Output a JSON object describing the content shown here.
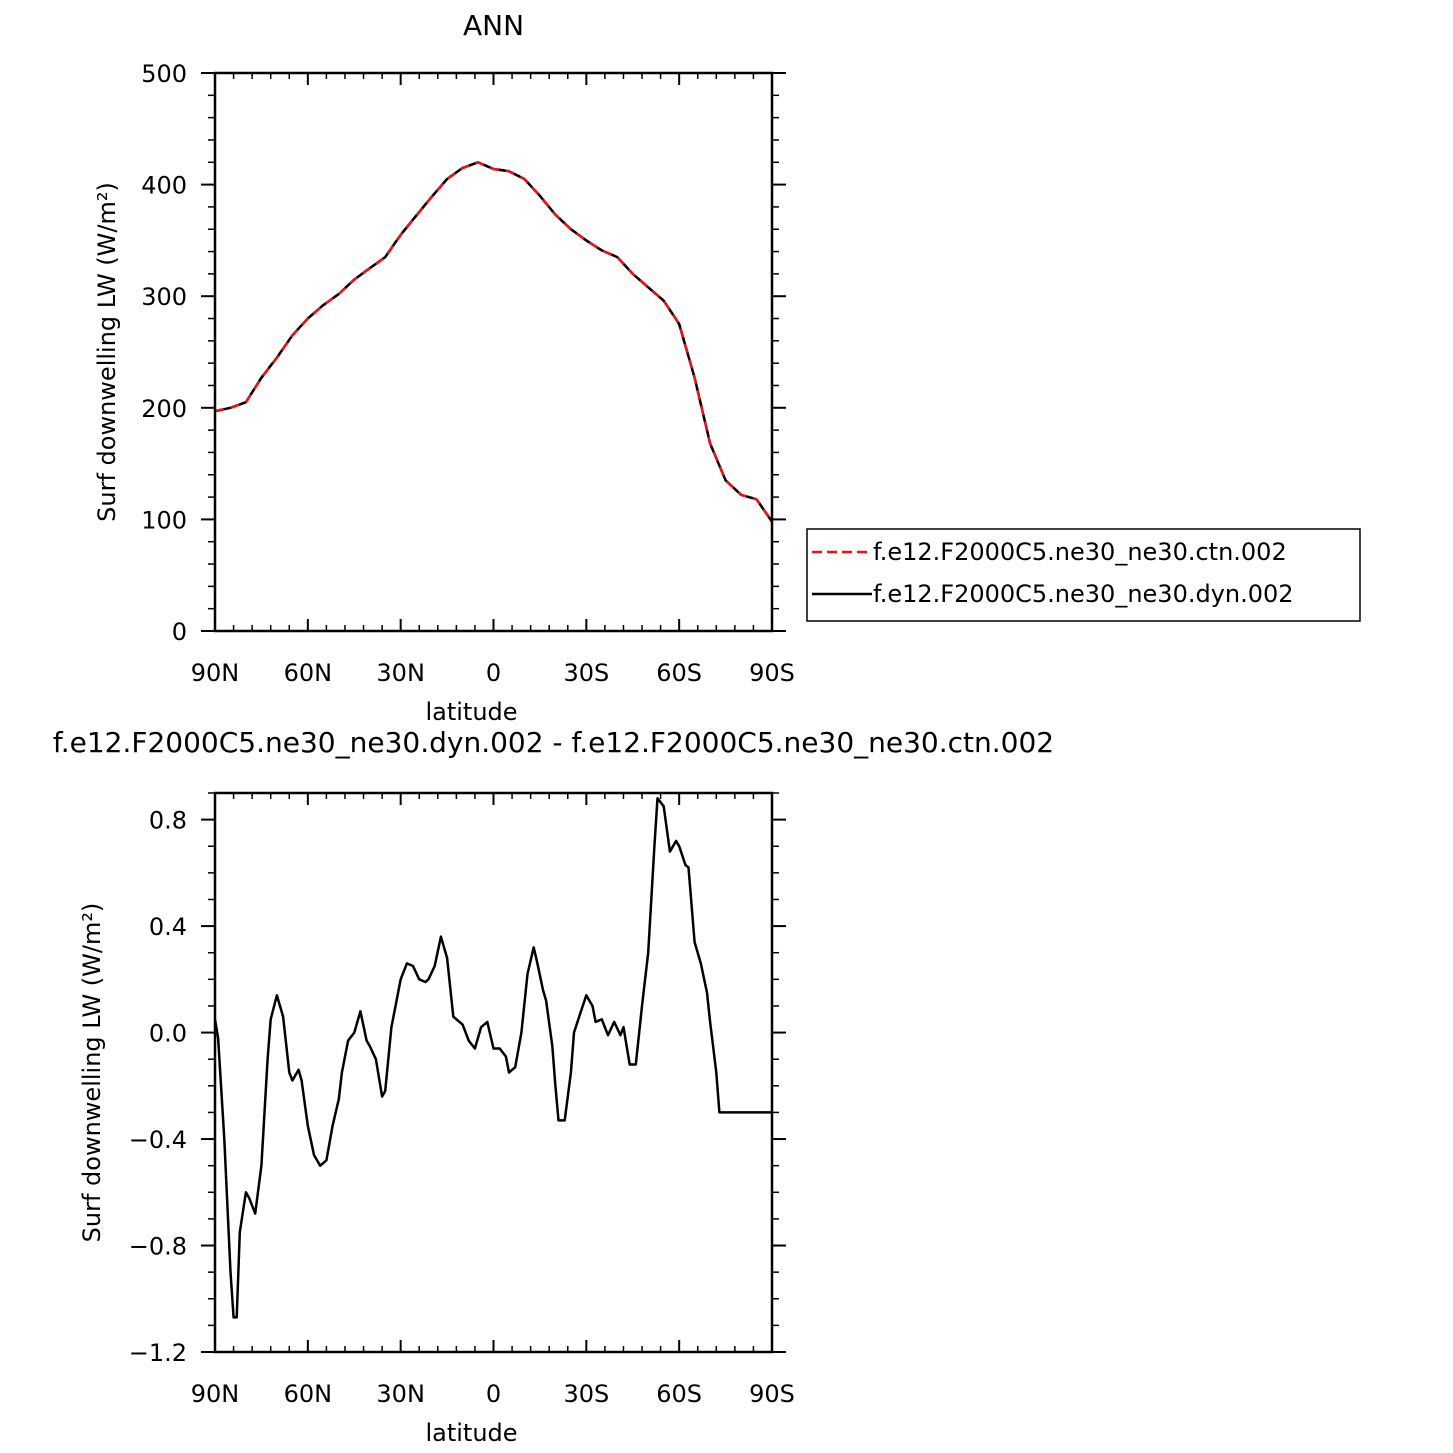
{
  "colors": {
    "ctn": "#e8141b",
    "dyn": "#000000"
  },
  "chart_data": [
    {
      "type": "line",
      "title": "ANN",
      "xlabel": "latitude",
      "ylabel": "Surf downwelling LW (W/m²)",
      "xlim": [
        90,
        -90
      ],
      "ylim": [
        0,
        500
      ],
      "x_ticks": [
        90,
        60,
        30,
        0,
        -30,
        -60,
        -90
      ],
      "x_tick_labels": [
        "90N",
        "60N",
        "30N",
        "0",
        "30S",
        "60S",
        "90S"
      ],
      "y_ticks": [
        0,
        100,
        200,
        300,
        400,
        500
      ],
      "y_tick_labels": [
        "0",
        "100",
        "200",
        "300",
        "400",
        "500"
      ],
      "legend": {
        "position": "right"
      },
      "series": [
        {
          "name": "f.e12.F2000C5.ne30_ne30.ctn.002",
          "color": "#e8141b",
          "style": "dashed",
          "x": [
            90,
            85,
            80,
            75,
            70,
            65,
            60,
            55,
            50,
            45,
            40,
            35,
            30,
            25,
            20,
            15,
            10,
            5,
            0,
            -5,
            -10,
            -15,
            -20,
            -25,
            -30,
            -35,
            -40,
            -45,
            -50,
            -55,
            -60,
            -65,
            -70,
            -75,
            -80,
            -85,
            -90
          ],
          "y": [
            197,
            200,
            205,
            227,
            245,
            265,
            280,
            292,
            302,
            315,
            325,
            335,
            355,
            372,
            389,
            405,
            415,
            420,
            414,
            412,
            405,
            390,
            373,
            360,
            350,
            341,
            335,
            320,
            308,
            296,
            275,
            227,
            168,
            135,
            122,
            118,
            98
          ]
        },
        {
          "name": "f.e12.F2000C5.ne30_ne30.dyn.002",
          "color": "#000000",
          "style": "solid",
          "x": [
            90,
            85,
            80,
            75,
            70,
            65,
            60,
            55,
            50,
            45,
            40,
            35,
            30,
            25,
            20,
            15,
            10,
            5,
            0,
            -5,
            -10,
            -15,
            -20,
            -25,
            -30,
            -35,
            -40,
            -45,
            -50,
            -55,
            -60,
            -65,
            -70,
            -75,
            -80,
            -85,
            -90
          ],
          "y": [
            197,
            200,
            205,
            227,
            245,
            265,
            280,
            292,
            302,
            315,
            325,
            335,
            355,
            372,
            389,
            405,
            415,
            420,
            414,
            412,
            405,
            390,
            373,
            360,
            350,
            341,
            335,
            320,
            308,
            296,
            275,
            227,
            168,
            135,
            122,
            118,
            98
          ]
        }
      ]
    },
    {
      "type": "line",
      "title": "f.e12.F2000C5.ne30_ne30.dyn.002 - f.e12.F2000C5.ne30_ne30.ctn.002",
      "xlabel": "latitude",
      "ylabel": "Surf downwelling LW (W/m²)",
      "xlim": [
        90,
        -90
      ],
      "ylim": [
        -1.2,
        0.9
      ],
      "x_ticks": [
        90,
        60,
        30,
        0,
        -30,
        -60,
        -90
      ],
      "x_tick_labels": [
        "90N",
        "60N",
        "30N",
        "0",
        "30S",
        "60S",
        "90S"
      ],
      "y_ticks": [
        -1.2,
        -0.8,
        -0.4,
        0.0,
        0.4,
        0.8
      ],
      "y_tick_labels": [
        "−1.2",
        "−0.8",
        "−0.4",
        "0.0",
        "0.4",
        "0.8"
      ],
      "series": [
        {
          "color": "#000000",
          "style": "solid",
          "x": [
            90,
            89,
            87,
            85,
            84,
            83,
            82,
            80,
            79,
            77,
            75,
            73,
            72,
            70,
            68,
            66,
            65,
            63,
            62,
            60,
            58,
            56,
            54,
            52,
            50,
            49,
            47,
            45,
            43,
            41,
            40,
            38,
            36,
            35,
            33,
            31,
            30,
            28,
            26,
            24,
            22,
            21,
            19,
            17,
            15,
            13,
            12,
            10,
            8,
            6,
            4,
            2,
            0,
            -2,
            -4,
            -5,
            -7,
            -9,
            -11,
            -13,
            -14,
            -16,
            -17,
            -19,
            -20,
            -21,
            -23,
            -25,
            -26,
            -28,
            -30,
            -32,
            -33,
            -35,
            -37,
            -39,
            -41,
            -42,
            -44,
            -46,
            -48,
            -50,
            -52,
            -53,
            -55,
            -57,
            -59,
            -60,
            -62,
            -63,
            -65,
            -67,
            -69,
            -70,
            -72,
            -73,
            -75,
            -76,
            -77,
            -79,
            -81,
            -83,
            -85,
            -87,
            -89,
            -90
          ],
          "y": [
            0.05,
            -0.02,
            -0.4,
            -0.9,
            -1.07,
            -1.07,
            -0.75,
            -0.6,
            -0.62,
            -0.68,
            -0.5,
            -0.1,
            0.05,
            0.14,
            0.06,
            -0.15,
            -0.18,
            -0.14,
            -0.18,
            -0.35,
            -0.46,
            -0.5,
            -0.48,
            -0.35,
            -0.25,
            -0.15,
            -0.03,
            0.0,
            0.08,
            -0.03,
            -0.05,
            -0.1,
            -0.24,
            -0.22,
            0.02,
            0.14,
            0.2,
            0.26,
            0.25,
            0.2,
            0.19,
            0.2,
            0.25,
            0.36,
            0.28,
            0.06,
            0.05,
            0.03,
            -0.03,
            -0.06,
            0.02,
            0.04,
            -0.06,
            -0.06,
            -0.09,
            -0.15,
            -0.13,
            0.0,
            0.22,
            0.32,
            0.27,
            0.16,
            0.12,
            -0.05,
            -0.2,
            -0.33,
            -0.33,
            -0.15,
            0.0,
            0.07,
            0.14,
            0.1,
            0.04,
            0.05,
            -0.01,
            0.04,
            -0.01,
            0.02,
            -0.12,
            -0.12,
            0.1,
            0.3,
            0.7,
            0.88,
            0.85,
            0.68,
            0.72,
            0.7,
            0.63,
            0.62,
            0.34,
            0.26,
            0.15,
            0.04,
            -0.15,
            -0.3,
            -0.3,
            -0.3,
            -0.3,
            -0.3,
            -0.3,
            -0.3,
            -0.3,
            -0.3,
            -0.3,
            -0.3
          ]
        }
      ]
    }
  ]
}
